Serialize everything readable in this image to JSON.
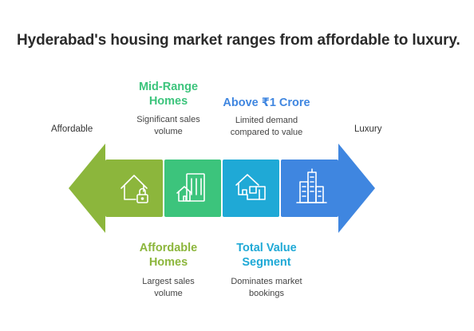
{
  "title": "Hyderabad's housing market ranges from affordable to luxury.",
  "ends": {
    "left": "Affordable",
    "right": "Luxury"
  },
  "colors": {
    "green_light": "#8cb63c",
    "green": "#3cc47c",
    "teal": "#1fa9d6",
    "blue": "#3f86e0",
    "label_mid": "#3cc47c",
    "label_above": "#3f86e0",
    "label_aff": "#8cb63c",
    "label_total": "#1fa9d6"
  },
  "segments": [
    {
      "icon": "house-lock-icon",
      "heading": "Affordable Homes",
      "desc": "Largest sales volume"
    },
    {
      "icon": "houses-building-icon",
      "heading": "Mid-Range Homes",
      "desc": "Significant sales volume"
    },
    {
      "icon": "villa-icon",
      "heading": "Total Value Segment",
      "desc": "Dominates market bookings"
    },
    {
      "icon": "skyscrapers-icon",
      "heading": "Above ₹1 Crore",
      "desc": "Limited demand compared to value"
    }
  ],
  "labels": {
    "mid_heading_1": "Mid-Range",
    "mid_heading_2": "Homes",
    "mid_desc_1": "Significant sales",
    "mid_desc_2": "volume",
    "above_heading": "Above ₹1 Crore",
    "above_desc_1": "Limited demand",
    "above_desc_2": "compared to value",
    "aff_heading_1": "Affordable",
    "aff_heading_2": "Homes",
    "aff_desc_1": "Largest sales",
    "aff_desc_2": "volume",
    "total_heading_1": "Total Value",
    "total_heading_2": "Segment",
    "total_desc_1": "Dominates market",
    "total_desc_2": "bookings"
  }
}
